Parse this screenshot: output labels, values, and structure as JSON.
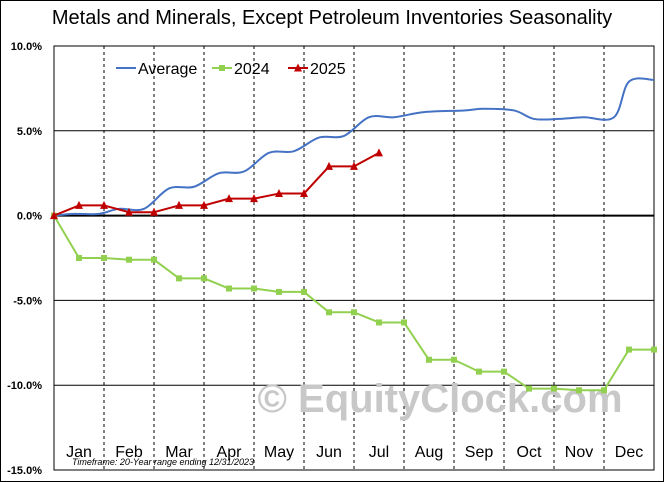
{
  "chart_data": {
    "type": "line",
    "title": "Metals and Minerals, Except Petroleum Inventories Seasonality",
    "categories": [
      "Jan",
      "Feb",
      "Mar",
      "Apr",
      "May",
      "Jun",
      "Jul",
      "Aug",
      "Sep",
      "Oct",
      "Nov",
      "Dec"
    ],
    "yticks": [
      "10.0%",
      "5.0%",
      "0.0%",
      "-5.0%",
      "-10.0%",
      "-15.0%"
    ],
    "ylim": [
      -15,
      10
    ],
    "xlim": [
      0,
      12
    ],
    "legend_position": "top-left",
    "grid": "vertical dashed month dividers, horizontal lines at y ticks",
    "series": [
      {
        "name": "Average",
        "color": "#4472c4",
        "marker": "none",
        "x": [
          0,
          0.4,
          0.9,
          1.3,
          1.8,
          2.3,
          2.8,
          3.3,
          3.8,
          4.3,
          4.8,
          5.3,
          5.8,
          6.3,
          6.8,
          7.4,
          8.2,
          8.6,
          9.2,
          9.6,
          10.1,
          10.6,
          11.2,
          11.5,
          12
        ],
        "y": [
          0,
          0.1,
          0.1,
          0.4,
          0.4,
          1.6,
          1.7,
          2.5,
          2.6,
          3.7,
          3.8,
          4.6,
          4.7,
          5.8,
          5.8,
          6.1,
          6.2,
          6.3,
          6.2,
          5.7,
          5.7,
          5.8,
          5.8,
          7.9,
          8.0
        ]
      },
      {
        "name": "2024",
        "color": "#92d050",
        "marker": "square",
        "x": [
          0,
          0.5,
          1.0,
          1.5,
          2.0,
          2.5,
          3.0,
          3.5,
          4.0,
          4.5,
          5.0,
          5.5,
          6.0,
          6.5,
          7.0,
          7.5,
          8.0,
          8.5,
          9.0,
          9.5,
          10.0,
          10.5,
          11.0,
          11.5,
          12.0
        ],
        "y": [
          0,
          -2.5,
          -2.5,
          -2.6,
          -2.6,
          -3.7,
          -3.7,
          -4.3,
          -4.3,
          -4.5,
          -4.5,
          -5.7,
          -5.7,
          -6.3,
          -6.3,
          -8.5,
          -8.5,
          -9.2,
          -9.2,
          -10.2,
          -10.2,
          -10.3,
          -10.3,
          -7.9,
          -7.9
        ]
      },
      {
        "name": "2025",
        "color": "#c00000",
        "marker": "triangle",
        "x": [
          0,
          0.5,
          1.0,
          1.5,
          2.0,
          2.5,
          3.0,
          3.5,
          4.0,
          4.5,
          5.0,
          5.5,
          6.0,
          6.5
        ],
        "y": [
          0,
          0.6,
          0.6,
          0.2,
          0.2,
          0.6,
          0.6,
          1.0,
          1.0,
          1.3,
          1.3,
          2.9,
          2.9,
          3.7
        ]
      }
    ],
    "footnote": "Timeframe: 20-Year range ending 12/31/2023",
    "watermark": "© EquityClock.com"
  }
}
